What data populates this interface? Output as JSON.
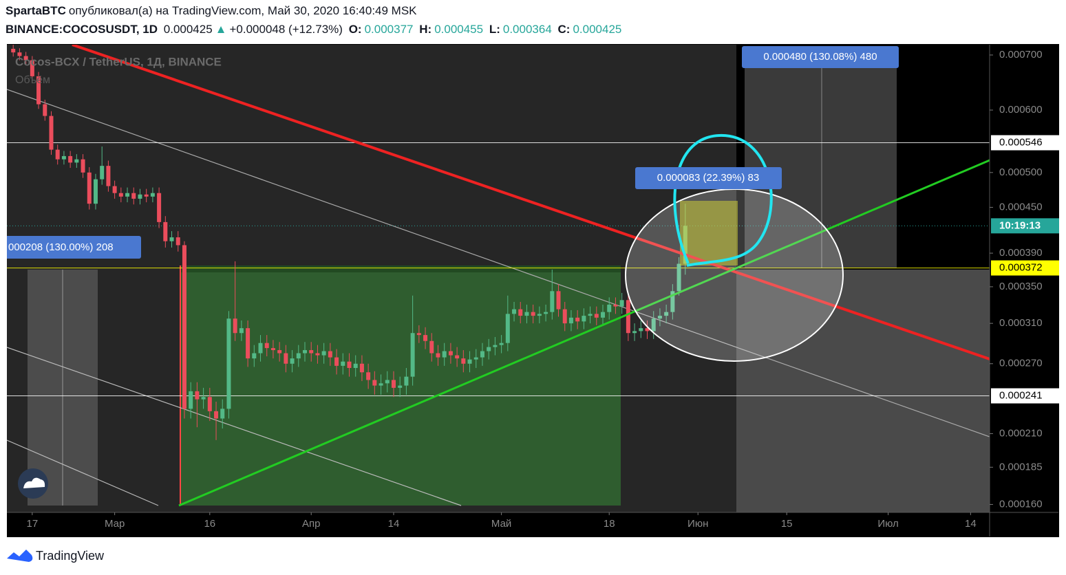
{
  "header": {
    "author": "SpartaBTC",
    "published": "опубликовал(а) на TradingView.com, Май 30, 2020 16:40:49 MSK",
    "symbol": "BINANCE:COCOSUSDT, 1D",
    "last": "0.000425",
    "arrow": "▲",
    "change": "+0.000048 (+12.73%)",
    "o_label": "O:",
    "o": "0.000377",
    "h_label": "H:",
    "h": "0.000455",
    "l_label": "L:",
    "l": "0.000364",
    "c_label": "C:",
    "c": "0.000425"
  },
  "watermark": "Cocos-BCX / TetherUS, 1Д, BINANCE",
  "volume_label": "Объём",
  "measures": [
    "0.000480 (130.08%) 480",
    "0.000083 (22.39%) 83",
    "000208 (130.00%) 208"
  ],
  "footer": "TradingView",
  "chart_data": {
    "type": "candlestick",
    "up_color": "#53b987",
    "down_color": "#eb4d5c",
    "xlim": [
      "2020-02-13",
      "2020-07-17"
    ],
    "ylim": [
      0.000155,
      0.00072
    ],
    "xticks": [
      {
        "value": "2020-02-17",
        "label": "17"
      },
      {
        "value": "2020-03-01",
        "label": "Мар"
      },
      {
        "value": "2020-03-16",
        "label": "16"
      },
      {
        "value": "2020-04-01",
        "label": "Апр"
      },
      {
        "value": "2020-04-14",
        "label": "14"
      },
      {
        "value": "2020-05-01",
        "label": "Май"
      },
      {
        "value": "2020-05-18",
        "label": "18"
      },
      {
        "value": "2020-06-01",
        "label": "Июн"
      },
      {
        "value": "2020-06-15",
        "label": "15"
      },
      {
        "value": "2020-07-01",
        "label": "Июл"
      },
      {
        "value": "2020-07-14",
        "label": "14"
      }
    ],
    "yticks": [
      {
        "value": 0.0007,
        "label": "0.000700"
      },
      {
        "value": 0.0006,
        "label": "0.000600"
      },
      {
        "value": 0.0005,
        "label": "0.000500"
      },
      {
        "value": 0.00045,
        "label": "0.000450"
      },
      {
        "value": 0.00039,
        "label": "0.000390"
      },
      {
        "value": 0.00035,
        "label": "0.000350"
      },
      {
        "value": 0.00031,
        "label": "0.000310"
      },
      {
        "value": 0.00027,
        "label": "0.000270"
      },
      {
        "value": 0.00021,
        "label": "0.000210"
      },
      {
        "value": 0.000185,
        "label": "0.000185"
      },
      {
        "value": 0.00016,
        "label": "0.000160"
      }
    ],
    "levels": [
      {
        "value": 0.000546,
        "label": "0.000546",
        "color": "#ffffff"
      },
      {
        "value": 0.000372,
        "label": "0.000372",
        "color": "#ffff00"
      },
      {
        "value": 0.000241,
        "label": "0.000241",
        "color": "#ffffff"
      }
    ],
    "countdown": "10:19:13",
    "countdown_color": "#26a69a",
    "x": [
      "2020-02-14",
      "2020-02-15",
      "2020-02-16",
      "2020-02-17",
      "2020-02-18",
      "2020-02-19",
      "2020-02-20",
      "2020-02-21",
      "2020-02-22",
      "2020-02-23",
      "2020-02-24",
      "2020-02-25",
      "2020-02-26",
      "2020-02-27",
      "2020-02-28",
      "2020-02-29",
      "2020-03-01",
      "2020-03-02",
      "2020-03-03",
      "2020-03-04",
      "2020-03-05",
      "2020-03-06",
      "2020-03-07",
      "2020-03-08",
      "2020-03-09",
      "2020-03-10",
      "2020-03-11",
      "2020-03-12",
      "2020-03-13",
      "2020-03-14",
      "2020-03-15",
      "2020-03-16",
      "2020-03-17",
      "2020-03-18",
      "2020-03-19",
      "2020-03-20",
      "2020-03-21",
      "2020-03-22",
      "2020-03-23",
      "2020-03-24",
      "2020-03-25",
      "2020-03-26",
      "2020-03-27",
      "2020-03-28",
      "2020-03-29",
      "2020-03-30",
      "2020-03-31",
      "2020-04-01",
      "2020-04-02",
      "2020-04-03",
      "2020-04-04",
      "2020-04-05",
      "2020-04-06",
      "2020-04-07",
      "2020-04-08",
      "2020-04-09",
      "2020-04-10",
      "2020-04-11",
      "2020-04-12",
      "2020-04-13",
      "2020-04-14",
      "2020-04-15",
      "2020-04-16",
      "2020-04-17",
      "2020-04-18",
      "2020-04-19",
      "2020-04-20",
      "2020-04-21",
      "2020-04-22",
      "2020-04-23",
      "2020-04-24",
      "2020-04-25",
      "2020-04-26",
      "2020-04-27",
      "2020-04-28",
      "2020-04-29",
      "2020-04-30",
      "2020-05-01",
      "2020-05-02",
      "2020-05-03",
      "2020-05-04",
      "2020-05-05",
      "2020-05-06",
      "2020-05-07",
      "2020-05-08",
      "2020-05-09",
      "2020-05-10",
      "2020-05-11",
      "2020-05-12",
      "2020-05-13",
      "2020-05-14",
      "2020-05-15",
      "2020-05-16",
      "2020-05-17",
      "2020-05-18",
      "2020-05-19",
      "2020-05-20",
      "2020-05-21",
      "2020-05-22",
      "2020-05-23",
      "2020-05-24",
      "2020-05-25",
      "2020-05-26",
      "2020-05-27",
      "2020-05-28",
      "2020-05-29",
      "2020-05-30"
    ],
    "ohlc": [
      [
        0.000712,
        0.00072,
        0.000697,
        0.000705
      ],
      [
        0.000705,
        0.000713,
        0.00069,
        0.000698
      ],
      [
        0.000698,
        0.000706,
        0.000682,
        0.00069
      ],
      [
        0.00069,
        0.000698,
        0.000652,
        0.00066
      ],
      [
        0.00066,
        0.000668,
        0.000602,
        0.00061
      ],
      [
        0.00061,
        0.000618,
        0.000582,
        0.00059
      ],
      [
        0.00059,
        0.000598,
        0.000527,
        0.000535
      ],
      [
        0.000535,
        0.000543,
        0.000512,
        0.00052
      ],
      [
        0.00052,
        0.000533,
        0.000512,
        0.000525
      ],
      [
        0.000525,
        0.000533,
        0.000507,
        0.000515
      ],
      [
        0.000515,
        0.000528,
        0.000507,
        0.00052
      ],
      [
        0.00052,
        0.000528,
        0.000492,
        0.0005
      ],
      [
        0.0005,
        0.000508,
        0.000447,
        0.000455
      ],
      [
        0.000455,
        0.000498,
        0.000447,
        0.00049
      ],
      [
        0.00049,
        0.00054,
        0.000482,
        0.00051
      ],
      [
        0.00051,
        0.000518,
        0.000472,
        0.00048
      ],
      [
        0.00048,
        0.000488,
        0.000462,
        0.00047
      ],
      [
        0.00047,
        0.000478,
        0.000457,
        0.000465
      ],
      [
        0.000465,
        0.000478,
        0.000457,
        0.00047
      ],
      [
        0.00047,
        0.000478,
        0.000454,
        0.000462
      ],
      [
        0.000462,
        0.000476,
        0.000454,
        0.000468
      ],
      [
        0.000468,
        0.000476,
        0.000457,
        0.000465
      ],
      [
        0.000465,
        0.000478,
        0.000457,
        0.00047
      ],
      [
        0.00047,
        0.000478,
        0.000422,
        0.00043
      ],
      [
        0.00043,
        0.000438,
        0.000397,
        0.000405
      ],
      [
        0.000405,
        0.000418,
        0.000397,
        0.00041
      ],
      [
        0.00041,
        0.000418,
        0.000392,
        0.0004
      ],
      [
        0.0004,
        0.000405,
        0.000222,
        0.00023
      ],
      [
        0.00023,
        0.000253,
        0.000222,
        0.000245
      ],
      [
        0.000245,
        0.000253,
        0.000215,
        0.000238
      ],
      [
        0.000238,
        0.000248,
        0.00023,
        0.00024
      ],
      [
        0.00024,
        0.000248,
        0.00022,
        0.000228
      ],
      [
        0.000228,
        0.000236,
        0.000205,
        0.000222
      ],
      [
        0.000222,
        0.000238,
        0.000214,
        0.00023
      ],
      [
        0.00023,
        0.000323,
        0.000222,
        0.000315
      ],
      [
        0.000315,
        0.00038,
        0.000292,
        0.0003
      ],
      [
        0.0003,
        0.000313,
        0.000292,
        0.000305
      ],
      [
        0.000305,
        0.000313,
        0.000267,
        0.000275
      ],
      [
        0.000275,
        0.000288,
        0.000267,
        0.00028
      ],
      [
        0.00028,
        0.000298,
        0.000272,
        0.00029
      ],
      [
        0.00029,
        0.000298,
        0.000277,
        0.000285
      ],
      [
        0.000285,
        0.000293,
        0.000275,
        0.000283
      ],
      [
        0.000283,
        0.000291,
        0.000272,
        0.00028
      ],
      [
        0.00028,
        0.000288,
        0.000262,
        0.00027
      ],
      [
        0.00027,
        0.000283,
        0.000262,
        0.000275
      ],
      [
        0.000275,
        0.000288,
        0.000267,
        0.00028
      ],
      [
        0.00028,
        0.000291,
        0.000272,
        0.000283
      ],
      [
        0.000283,
        0.000291,
        0.000272,
        0.00028
      ],
      [
        0.00028,
        0.000288,
        0.00027,
        0.000278
      ],
      [
        0.000278,
        0.00029,
        0.00027,
        0.000282
      ],
      [
        0.000282,
        0.00029,
        0.000268,
        0.000276
      ],
      [
        0.000276,
        0.000284,
        0.00026,
        0.000268
      ],
      [
        0.000268,
        0.00028,
        0.00026,
        0.000272
      ],
      [
        0.000272,
        0.00028,
        0.000258,
        0.000266
      ],
      [
        0.000266,
        0.000278,
        0.000258,
        0.00027
      ],
      [
        0.00027,
        0.000278,
        0.000254,
        0.000262
      ],
      [
        0.000262,
        0.00027,
        0.000247,
        0.000255
      ],
      [
        0.000255,
        0.000263,
        0.000242,
        0.00025
      ],
      [
        0.00025,
        0.00026,
        0.000242,
        0.000252
      ],
      [
        0.000252,
        0.000263,
        0.000244,
        0.000255
      ],
      [
        0.000255,
        0.000263,
        0.00024,
        0.000248
      ],
      [
        0.000248,
        0.000258,
        0.00024,
        0.00025
      ],
      [
        0.00025,
        0.000266,
        0.000242,
        0.000258
      ],
      [
        0.000258,
        0.00034,
        0.00025,
        0.0003
      ],
      [
        0.0003,
        0.000308,
        0.00029,
        0.000298
      ],
      [
        0.000298,
        0.000306,
        0.000284,
        0.000292
      ],
      [
        0.000292,
        0.0003,
        0.000272,
        0.00028
      ],
      [
        0.00028,
        0.000288,
        0.000268,
        0.000276
      ],
      [
        0.000276,
        0.00029,
        0.000268,
        0.000282
      ],
      [
        0.000282,
        0.00029,
        0.00027,
        0.000278
      ],
      [
        0.000278,
        0.000286,
        0.000267,
        0.000275
      ],
      [
        0.000275,
        0.000283,
        0.000262,
        0.00027
      ],
      [
        0.00027,
        0.000282,
        0.000262,
        0.000274
      ],
      [
        0.000274,
        0.000284,
        0.000266,
        0.000276
      ],
      [
        0.000276,
        0.00029,
        0.000268,
        0.000282
      ],
      [
        0.000282,
        0.000294,
        0.000274,
        0.000286
      ],
      [
        0.000286,
        0.000296,
        0.000278,
        0.000288
      ],
      [
        0.000288,
        0.000298,
        0.00028,
        0.00029
      ],
      [
        0.00029,
        0.00034,
        0.000282,
        0.00032
      ],
      [
        0.00032,
        0.000333,
        0.000312,
        0.000325
      ],
      [
        0.000325,
        0.000333,
        0.00031,
        0.000318
      ],
      [
        0.000318,
        0.00033,
        0.00031,
        0.000322
      ],
      [
        0.000322,
        0.00033,
        0.00031,
        0.000318
      ],
      [
        0.000318,
        0.000328,
        0.00031,
        0.00032
      ],
      [
        0.00032,
        0.00033,
        0.000312,
        0.000322
      ],
      [
        0.000322,
        0.00037,
        0.000314,
        0.000345
      ],
      [
        0.000345,
        0.000353,
        0.000317,
        0.000325
      ],
      [
        0.000325,
        0.000333,
        0.000302,
        0.00031
      ],
      [
        0.00031,
        0.000324,
        0.000302,
        0.000316
      ],
      [
        0.000316,
        0.000324,
        0.000304,
        0.000312
      ],
      [
        0.000312,
        0.000326,
        0.000304,
        0.000318
      ],
      [
        0.000318,
        0.000328,
        0.00031,
        0.00032
      ],
      [
        0.00032,
        0.000328,
        0.000308,
        0.000316
      ],
      [
        0.000316,
        0.00033,
        0.000308,
        0.000322
      ],
      [
        0.000322,
        0.000338,
        0.000314,
        0.00033
      ],
      [
        0.00033,
        0.000338,
        0.00032,
        0.000328
      ],
      [
        0.000328,
        0.000343,
        0.00032,
        0.000335
      ],
      [
        0.000335,
        0.000343,
        0.000292,
        0.0003
      ],
      [
        0.0003,
        0.00031,
        0.000292,
        0.000302
      ],
      [
        0.000302,
        0.000313,
        0.000295,
        0.000305
      ],
      [
        0.000305,
        0.000313,
        0.000294,
        0.000302
      ],
      [
        0.000302,
        0.000323,
        0.000294,
        0.000315
      ],
      [
        0.000315,
        0.000326,
        0.000307,
        0.000318
      ],
      [
        0.000318,
        0.00033,
        0.00031,
        0.000322
      ],
      [
        0.000322,
        0.000353,
        0.000314,
        0.000345
      ],
      [
        0.000345,
        0.000385,
        0.00034,
        0.000377
      ],
      [
        0.000377,
        0.000455,
        0.000364,
        0.000425
      ]
    ]
  }
}
